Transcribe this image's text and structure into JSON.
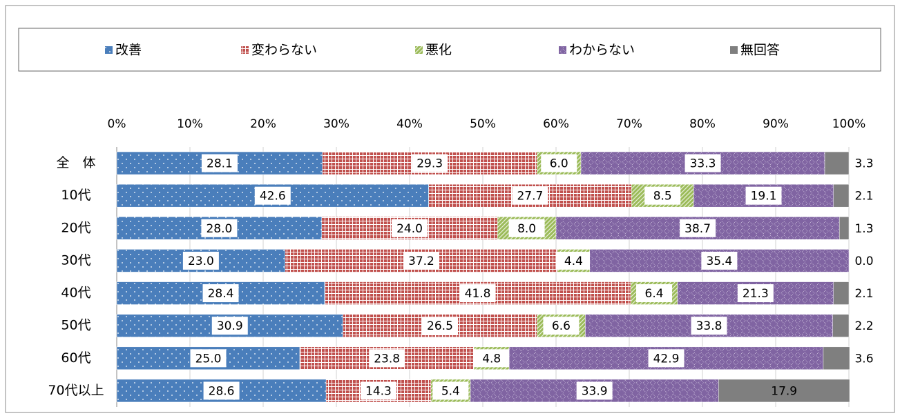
{
  "chart_data": {
    "type": "stacked-bar-horizontal",
    "categories": [
      "全　体",
      "10代",
      "20代",
      "30代",
      "40代",
      "50代",
      "60代",
      "70代以上"
    ],
    "series": [
      {
        "name": "改善",
        "color": "#4a7ebb",
        "values": [
          28.1,
          42.6,
          28.0,
          23.0,
          28.4,
          30.9,
          25.0,
          28.6
        ],
        "value_labels": [
          "28.1",
          "42.6",
          "28.0",
          "23.0",
          "28.4",
          "30.9",
          "25.0",
          "28.6"
        ]
      },
      {
        "name": "変わらない",
        "color": "#c0504d",
        "values": [
          29.3,
          27.7,
          24.0,
          37.2,
          41.8,
          26.5,
          23.8,
          14.3
        ],
        "value_labels": [
          "29.3",
          "27.7",
          "24.0",
          "37.2",
          "41.8",
          "26.5",
          "23.8",
          "14.3"
        ]
      },
      {
        "name": "悪化",
        "color": "#9bbb59",
        "values": [
          6.0,
          8.5,
          8.0,
          4.4,
          6.4,
          6.6,
          4.8,
          5.4
        ],
        "value_labels": [
          "6.0",
          "8.5",
          "8.0",
          "4.4",
          "6.4",
          "6.6",
          "4.8",
          "5.4"
        ]
      },
      {
        "name": "わからない",
        "color": "#8064a2",
        "values": [
          33.3,
          19.1,
          38.7,
          35.4,
          21.3,
          33.8,
          42.9,
          33.9
        ],
        "value_labels": [
          "33.3",
          "19.1",
          "38.7",
          "35.4",
          "21.3",
          "33.8",
          "42.9",
          "33.9"
        ]
      },
      {
        "name": "無回答",
        "color": "#7f7f7f",
        "values": [
          3.3,
          2.1,
          1.3,
          0.0,
          2.1,
          2.2,
          3.6,
          17.9
        ],
        "value_labels": [
          "3.3",
          "2.1",
          "1.3",
          "0.0",
          "2.1",
          "2.2",
          "3.6",
          "17.9"
        ]
      }
    ],
    "xlim": [
      0,
      100
    ],
    "xticks": [
      {
        "value": 0,
        "label": "0%"
      },
      {
        "value": 10,
        "label": "10%"
      },
      {
        "value": 20,
        "label": "20%"
      },
      {
        "value": 30,
        "label": "30%"
      },
      {
        "value": 40,
        "label": "40%"
      },
      {
        "value": 50,
        "label": "50%"
      },
      {
        "value": 60,
        "label": "60%"
      },
      {
        "value": 70,
        "label": "70%"
      },
      {
        "value": 80,
        "label": "80%"
      },
      {
        "value": 90,
        "label": "90%"
      },
      {
        "value": 100,
        "label": "100%"
      }
    ],
    "grid": true,
    "legend": "top"
  }
}
